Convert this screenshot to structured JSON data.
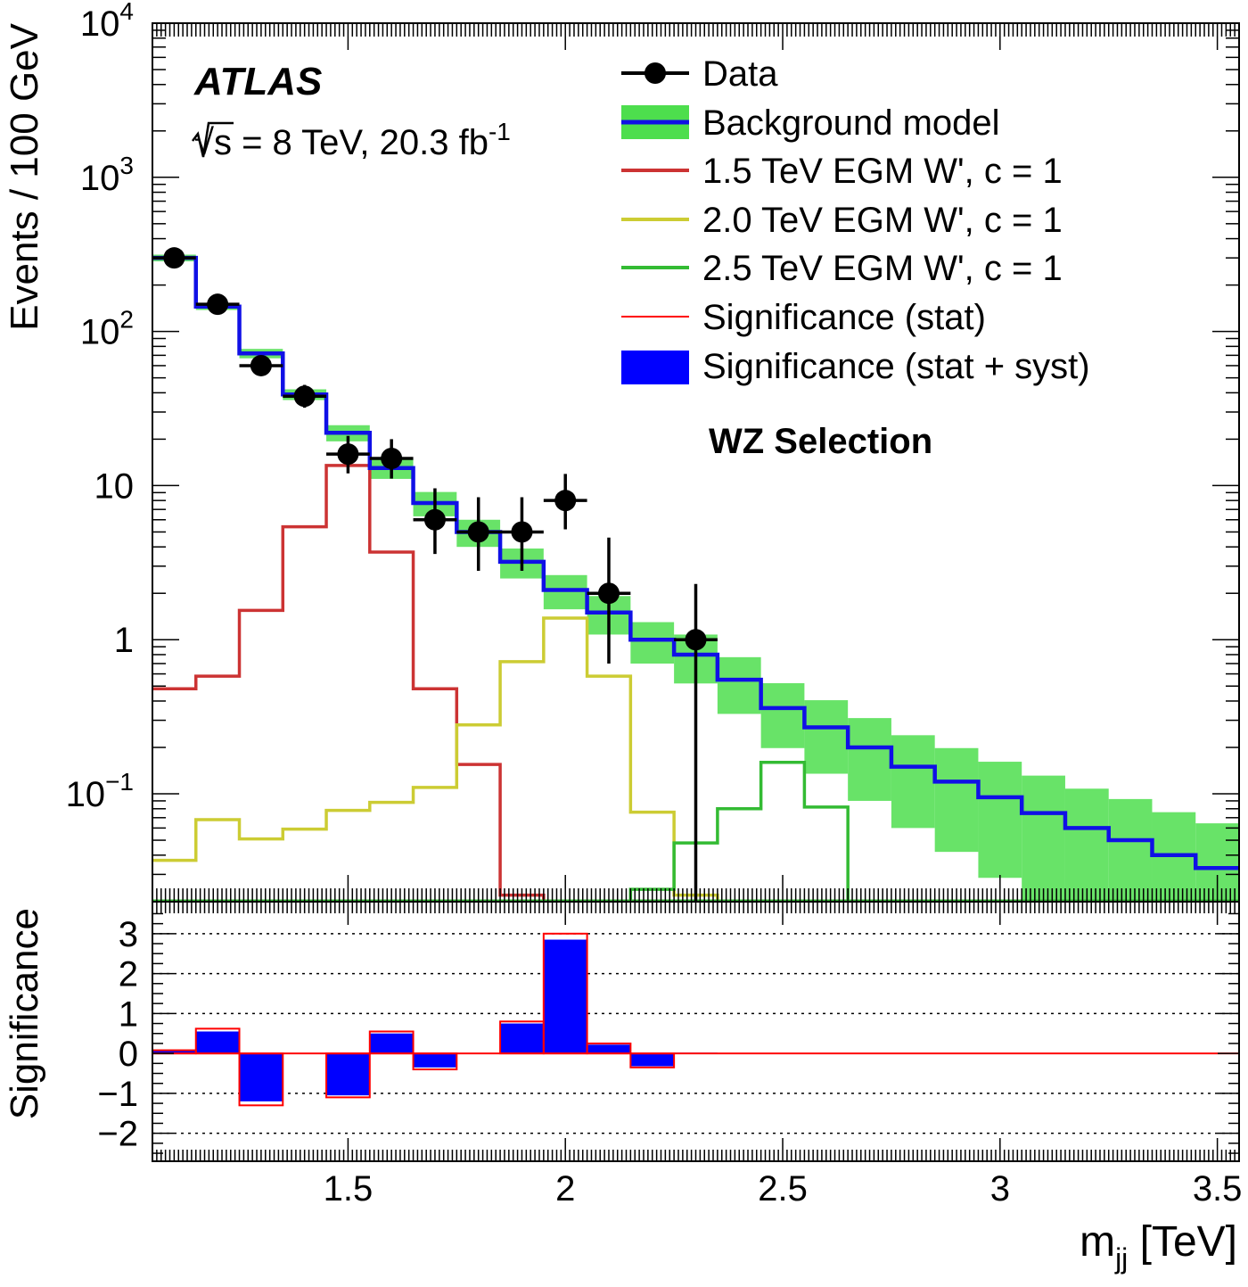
{
  "chart_data": {
    "type": "histogram",
    "experiment_label": "ATLAS",
    "energy_label": "√s = 8 TeV, 20.3 fb",
    "energy_label_sup": "-1",
    "selection_label": "WZ Selection",
    "xlabel": "m",
    "xlabel_sub": "jj",
    "xlabel_unit": " [TeV]",
    "upper_ylabel": "Events / 100 GeV",
    "lower_ylabel": "Significance",
    "xlim": [
      1.05,
      3.55
    ],
    "upper_ylim_log10": [
      -1.7,
      4
    ],
    "lower_ylim": [
      -2.7,
      3.8
    ],
    "bin_edges": [
      1.05,
      1.15,
      1.25,
      1.35,
      1.45,
      1.55,
      1.65,
      1.75,
      1.85,
      1.95,
      2.05,
      2.15,
      2.25,
      2.35,
      2.45,
      2.55,
      2.65,
      2.75,
      2.85,
      2.95,
      3.05,
      3.15,
      3.25,
      3.35,
      3.45,
      3.55
    ],
    "x_ticks": [
      {
        "value": 1.5,
        "label": "1.5"
      },
      {
        "value": 2.0,
        "label": "2"
      },
      {
        "value": 2.5,
        "label": "2.5"
      },
      {
        "value": 3.0,
        "label": "3"
      },
      {
        "value": 3.5,
        "label": "3.5"
      }
    ],
    "y_ticks": [
      {
        "value": 10000,
        "base": "10",
        "sup": "4"
      },
      {
        "value": 1000,
        "base": "10",
        "sup": "3"
      },
      {
        "value": 100,
        "base": "10",
        "sup": "2"
      },
      {
        "value": 10,
        "base": "10",
        "sup": ""
      },
      {
        "value": 1,
        "base": "1",
        "sup": ""
      },
      {
        "value": 0.1,
        "base": "10",
        "sup": "−1"
      }
    ],
    "sig_ticks": [
      {
        "value": 3,
        "label": "3"
      },
      {
        "value": 2,
        "label": "2"
      },
      {
        "value": 1,
        "label": "1"
      },
      {
        "value": 0,
        "label": "0"
      },
      {
        "value": -1,
        "label": "−1"
      },
      {
        "value": -2,
        "label": "−2"
      }
    ],
    "legend": [
      {
        "key": "data",
        "label": "Data"
      },
      {
        "key": "background",
        "label": "Background model"
      },
      {
        "key": "sig15",
        "label": "1.5 TeV EGM W', c = 1"
      },
      {
        "key": "sig20",
        "label": "2.0 TeV EGM W', c = 1"
      },
      {
        "key": "sig25",
        "label": "2.5 TeV EGM W', c = 1"
      },
      {
        "key": "sig_stat",
        "label": "Significance (stat)"
      },
      {
        "key": "sig_syst",
        "label": "Significance (stat + syst)"
      }
    ],
    "data": {
      "x": [
        1.1,
        1.2,
        1.3,
        1.4,
        1.5,
        1.6,
        1.7,
        1.8,
        1.9,
        2.0,
        2.1,
        2.3
      ],
      "y": [
        300,
        150,
        60,
        38,
        16,
        15,
        6,
        5,
        5,
        8,
        2,
        1
      ],
      "yerr_low": [
        17,
        12,
        8,
        6,
        4,
        3.9,
        2.4,
        2.2,
        2.2,
        2.8,
        1.3,
        0.98
      ],
      "yerr_high": [
        18,
        13,
        8.5,
        7,
        5,
        5,
        3.6,
        3.4,
        3.4,
        3.9,
        2.6,
        1.3
      ],
      "xerr": 0.05
    },
    "background": {
      "values": [
        300,
        145,
        72,
        39,
        22,
        13,
        7.7,
        5,
        3.2,
        2.1,
        1.5,
        1.0,
        0.8,
        0.55,
        0.36,
        0.27,
        0.2,
        0.15,
        0.12,
        0.095,
        0.075,
        0.06,
        0.05,
        0.04,
        0.033
      ],
      "rel_unc": [
        0.05,
        0.05,
        0.07,
        0.08,
        0.12,
        0.15,
        0.18,
        0.2,
        0.22,
        0.25,
        0.28,
        0.3,
        0.35,
        0.4,
        0.45,
        0.5,
        0.55,
        0.6,
        0.65,
        0.7,
        0.75,
        0.8,
        0.85,
        0.9,
        0.95
      ],
      "color": "#1010e6",
      "band_color": "#4dde4d"
    },
    "signal_1p5": {
      "values": [
        0.48,
        0.58,
        1.55,
        5.4,
        13.5,
        3.7,
        0.48,
        0.155,
        0.022,
        0.02,
        0,
        0,
        0,
        0,
        0,
        0,
        0,
        0,
        0,
        0,
        0,
        0,
        0,
        0,
        0
      ],
      "color": "#cc3333"
    },
    "signal_2p0": {
      "values": [
        0.037,
        0.068,
        0.051,
        0.059,
        0.078,
        0.088,
        0.11,
        0.28,
        0.72,
        1.38,
        0.58,
        0.076,
        0.022,
        0.02,
        0,
        0,
        0,
        0,
        0,
        0,
        0,
        0,
        0,
        0,
        0
      ],
      "color": "#cccc33"
    },
    "signal_2p5": {
      "values": [
        0,
        0,
        0,
        0,
        0,
        0,
        0,
        0,
        0,
        0,
        0,
        0.024,
        0.048,
        0.08,
        0.16,
        0.082,
        0.02,
        0,
        0,
        0,
        0,
        0,
        0,
        0,
        0
      ],
      "color": "#33bb33"
    },
    "significance_stat": {
      "values": [
        0.08,
        0.62,
        -1.3,
        0,
        -1.1,
        0.55,
        -0.4,
        0,
        0.8,
        3.0,
        0.25,
        -0.35,
        0,
        0,
        0,
        0,
        0,
        0,
        0,
        0,
        0,
        0,
        0,
        0,
        0
      ],
      "color": "#ff0000"
    },
    "significance_syst": {
      "values": [
        0.06,
        0.55,
        -1.2,
        0,
        -1.05,
        0.5,
        -0.35,
        0,
        0.75,
        2.85,
        0.22,
        -0.32,
        0.02,
        0,
        0,
        0,
        0,
        0,
        0,
        0,
        0,
        0,
        0,
        0,
        0
      ],
      "color": "#0000ff"
    }
  }
}
